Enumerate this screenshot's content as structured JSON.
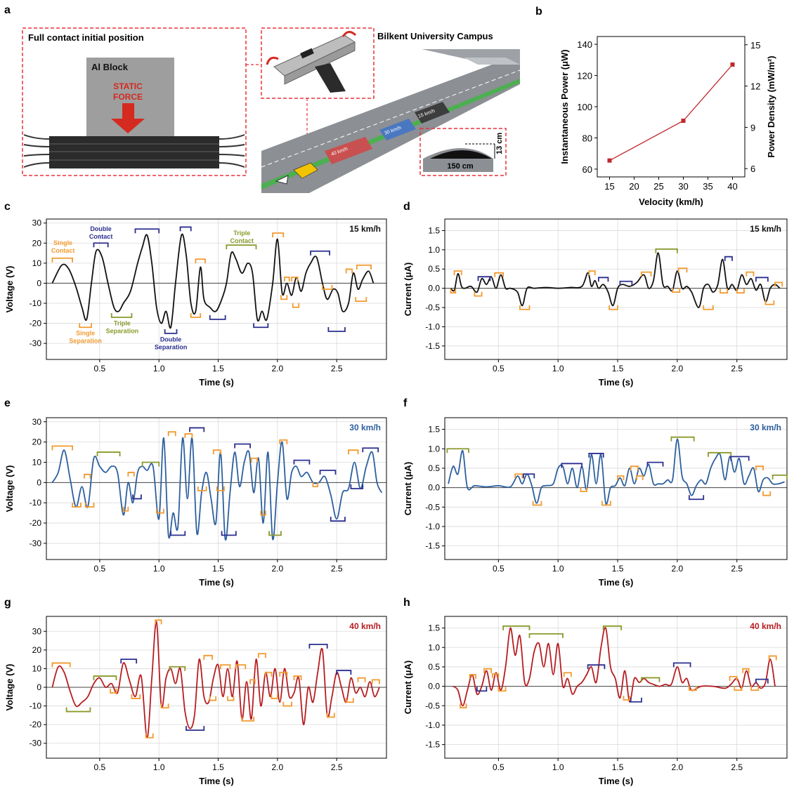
{
  "panel_letters": {
    "a": "a",
    "b": "b",
    "c": "c",
    "d": "d",
    "e": "e",
    "f": "f",
    "g": "g",
    "h": "h"
  },
  "panel_a": {
    "title_left": "Full contact initial position",
    "block_label": "Al Block",
    "force_line1": "STATIC",
    "force_line2": "FORCE",
    "campus_label": "Bilkent University Campus",
    "bump_height": "13 cm",
    "bump_width": "150 cm",
    "zone_labels": [
      "40 km/h",
      "30 km/h",
      "15 km/h"
    ],
    "colors": {
      "dashed_frame": "#e8323c",
      "block": "#9e9e9e",
      "stack": "#333333",
      "road": "#8c8f94",
      "green_strip": "#4caf50",
      "arrow": "#d42a20"
    }
  },
  "chart_data": [
    {
      "id": "b",
      "type": "line",
      "x": [
        15,
        30,
        40
      ],
      "y": [
        65.5,
        91,
        127
      ],
      "xlabel": "Velocity (km/h)",
      "ylabel": "Instantaneous Power (μW)",
      "y2label": "Power Density (mW/m²)",
      "xlim": [
        12.5,
        42.5
      ],
      "ylim": [
        55,
        145
      ],
      "y2lim": [
        5.4,
        15.6
      ],
      "xticks": [
        15,
        20,
        25,
        30,
        35,
        40
      ],
      "yticks": [
        60,
        80,
        100,
        120,
        140
      ],
      "y2ticks": [
        6,
        9,
        12,
        15
      ],
      "color": "#c0282d"
    },
    {
      "id": "c",
      "type": "line",
      "xlabel": "Time (s)",
      "ylabel": "Voltage (V)",
      "speed_label": "15 km/h",
      "xlim": [
        0.05,
        2.92
      ],
      "ylim": [
        -38,
        32
      ],
      "xticks": [
        0.5,
        1.0,
        1.5,
        2.0,
        2.5
      ],
      "yticks": [
        -30,
        -20,
        -10,
        0,
        10,
        20,
        30
      ],
      "color": "#111111",
      "x": [
        0.1,
        0.18,
        0.24,
        0.3,
        0.35,
        0.39,
        0.43,
        0.47,
        0.52,
        0.57,
        0.62,
        0.66,
        0.7,
        0.76,
        0.82,
        0.86,
        0.9,
        0.94,
        0.98,
        1.02,
        1.06,
        1.1,
        1.14,
        1.19,
        1.23,
        1.27,
        1.31,
        1.35,
        1.38,
        1.43,
        1.48,
        1.53,
        1.57,
        1.61,
        1.65,
        1.7,
        1.75,
        1.79,
        1.83,
        1.87,
        1.91,
        1.96,
        2.0,
        2.04,
        2.08,
        2.12,
        2.16,
        2.2,
        2.24,
        2.28,
        2.33,
        2.38,
        2.42,
        2.47,
        2.51,
        2.55,
        2.6,
        2.64,
        2.68,
        2.72,
        2.77,
        2.81
      ],
      "y": [
        0,
        9,
        7,
        -2,
        -12,
        -18,
        0,
        16,
        13,
        0,
        -12,
        -14,
        -10,
        -4,
        10,
        18,
        24,
        10,
        -12,
        -20,
        -14,
        -22,
        0,
        24,
        14,
        -10,
        -14,
        8,
        -8,
        -12,
        -14,
        -8,
        0,
        15,
        12,
        5,
        10,
        5,
        -18,
        -14,
        -18,
        0,
        22,
        -5,
        0,
        -6,
        3,
        -4,
        5,
        10,
        13,
        0,
        -8,
        -3,
        -5,
        -14,
        -10,
        5,
        -3,
        2,
        6,
        0
      ]
    },
    {
      "id": "d",
      "type": "line",
      "xlabel": "Time (s)",
      "ylabel": "Current (μA)",
      "speed_label": "15 km/h",
      "xlim": [
        0.05,
        2.92
      ],
      "ylim": [
        -1.85,
        1.8
      ],
      "xticks": [
        0.5,
        1.0,
        1.5,
        2.0,
        2.5
      ],
      "yticks": [
        -1.5,
        -1.0,
        -0.5,
        0.0,
        0.5,
        1.0,
        1.5
      ],
      "color": "#111111",
      "x": [
        0.1,
        0.13,
        0.16,
        0.19,
        0.22,
        0.27,
        0.32,
        0.36,
        0.4,
        0.44,
        0.48,
        0.52,
        0.56,
        0.6,
        0.66,
        0.7,
        0.74,
        0.8,
        0.9,
        1.0,
        1.1,
        1.2,
        1.25,
        1.28,
        1.31,
        1.34,
        1.38,
        1.42,
        1.46,
        1.5,
        1.54,
        1.6,
        1.66,
        1.72,
        1.76,
        1.8,
        1.84,
        1.88,
        1.92,
        1.96,
        2.0,
        2.04,
        2.08,
        2.12,
        2.18,
        2.22,
        2.26,
        2.3,
        2.34,
        2.38,
        2.42,
        2.46,
        2.5,
        2.54,
        2.58,
        2.62,
        2.66,
        2.7,
        2.74,
        2.78,
        2.82,
        2.86
      ],
      "y": [
        0,
        -0.05,
        0.38,
        0.05,
        0,
        0.05,
        -0.1,
        0.25,
        0.1,
        0.3,
        0,
        0.35,
        0,
        0,
        -0.1,
        -0.45,
        0,
        0,
        0.02,
        0,
        0.02,
        0.05,
        0.4,
        0.05,
        0.2,
        0,
        0.1,
        -0.1,
        -0.45,
        0,
        0.1,
        0.05,
        0.15,
        0.35,
        0,
        0.2,
        0.92,
        0.1,
        0.05,
        -0.05,
        0.45,
        0,
        0.05,
        -0.1,
        -0.5,
        0,
        0.1,
        -0.1,
        0.1,
        0.75,
        0,
        0.1,
        -0.05,
        0.35,
        0.1,
        0.25,
        -0.05,
        0.1,
        -0.35,
        0,
        0.1,
        0
      ]
    },
    {
      "id": "e",
      "type": "line",
      "xlabel": "Time (s)",
      "ylabel": "Voltage (V)",
      "speed_label": "30 km/h",
      "xlim": [
        0.05,
        2.92
      ],
      "ylim": [
        -38,
        32
      ],
      "xticks": [
        0.5,
        1.0,
        1.5,
        2.0,
        2.5
      ],
      "yticks": [
        -30,
        -20,
        -10,
        0,
        10,
        20,
        30
      ],
      "color": "#2c5f9e",
      "x": [
        0.1,
        0.15,
        0.2,
        0.25,
        0.3,
        0.35,
        0.4,
        0.45,
        0.5,
        0.55,
        0.6,
        0.65,
        0.7,
        0.74,
        0.78,
        0.82,
        0.86,
        0.9,
        0.95,
        1.0,
        1.04,
        1.08,
        1.12,
        1.16,
        1.2,
        1.24,
        1.28,
        1.32,
        1.36,
        1.4,
        1.44,
        1.48,
        1.52,
        1.56,
        1.6,
        1.64,
        1.68,
        1.72,
        1.76,
        1.8,
        1.84,
        1.88,
        1.92,
        1.96,
        2.0,
        2.04,
        2.08,
        2.12,
        2.16,
        2.2,
        2.25,
        2.3,
        2.35,
        2.4,
        2.45,
        2.5,
        2.55,
        2.6,
        2.65,
        2.7,
        2.75,
        2.8,
        2.84,
        2.88
      ],
      "y": [
        0,
        5,
        16,
        2,
        -12,
        -2,
        -12,
        12,
        8,
        5,
        8,
        5,
        -16,
        0,
        -10,
        5,
        8,
        6,
        8,
        -18,
        22,
        -26,
        -15,
        -22,
        22,
        -8,
        22,
        -25,
        -5,
        5,
        -8,
        -20,
        15,
        -28,
        -5,
        15,
        -2,
        10,
        15,
        -5,
        12,
        -20,
        15,
        -28,
        0,
        20,
        -8,
        5,
        8,
        3,
        5,
        0,
        0,
        3,
        -6,
        -18,
        -5,
        -3,
        10,
        -3,
        8,
        15,
        0,
        -5
      ]
    },
    {
      "id": "f",
      "type": "line",
      "xlabel": "Time (s)",
      "ylabel": "Current (μA)",
      "speed_label": "30 km/h",
      "xlim": [
        0.05,
        2.92
      ],
      "ylim": [
        -1.85,
        1.8
      ],
      "xticks": [
        0.5,
        1.0,
        1.5,
        2.0,
        2.5
      ],
      "yticks": [
        -1.5,
        -1.0,
        -0.5,
        0.0,
        0.5,
        1.0,
        1.5
      ],
      "color": "#2c5f9e",
      "x": [
        0.08,
        0.12,
        0.16,
        0.2,
        0.24,
        0.3,
        0.4,
        0.5,
        0.6,
        0.66,
        0.7,
        0.74,
        0.78,
        0.82,
        0.86,
        0.9,
        0.96,
        1.0,
        1.04,
        1.08,
        1.12,
        1.16,
        1.2,
        1.24,
        1.28,
        1.32,
        1.36,
        1.4,
        1.44,
        1.48,
        1.52,
        1.56,
        1.6,
        1.64,
        1.68,
        1.72,
        1.76,
        1.8,
        1.84,
        1.88,
        1.92,
        1.96,
        2.0,
        2.04,
        2.08,
        2.12,
        2.16,
        2.2,
        2.24,
        2.28,
        2.32,
        2.36,
        2.4,
        2.44,
        2.48,
        2.52,
        2.56,
        2.6,
        2.64,
        2.68,
        2.72,
        2.76,
        2.8,
        2.85,
        2.9
      ],
      "y": [
        0.1,
        0.55,
        0.35,
        0.95,
        0,
        0.05,
        0.02,
        0.05,
        0.02,
        0.3,
        0.1,
        0.35,
        0.05,
        -0.4,
        0,
        0.05,
        0.1,
        0.5,
        0.55,
        0.1,
        0.5,
        0,
        0.55,
        -0.05,
        0.85,
        0.1,
        0.85,
        -0.4,
        0,
        0.05,
        0.25,
        0.05,
        0.5,
        0.1,
        0.5,
        0.3,
        0.6,
        0.1,
        0.1,
        0.1,
        0.2,
        0.2,
        1.25,
        0.3,
        0.1,
        -0.2,
        0.05,
        0.2,
        0.1,
        0.5,
        0.75,
        0.85,
        0.2,
        0.8,
        0.4,
        0.75,
        0.1,
        0.3,
        0.5,
        -0.1,
        0.2,
        0.25,
        0.1,
        0.1,
        0.15
      ]
    },
    {
      "id": "g",
      "type": "line",
      "xlabel": "Time (s)",
      "ylabel": "Voltage (V)",
      "speed_label": "40 km/h",
      "xlim": [
        0.05,
        2.92
      ],
      "ylim": [
        -38,
        38
      ],
      "xticks": [
        0.5,
        1.0,
        1.5,
        2.0,
        2.5
      ],
      "yticks": [
        -30,
        -20,
        -10,
        0,
        10,
        20,
        30
      ],
      "color": "#b71c20",
      "x": [
        0.1,
        0.15,
        0.2,
        0.25,
        0.3,
        0.35,
        0.4,
        0.45,
        0.5,
        0.55,
        0.6,
        0.65,
        0.7,
        0.75,
        0.8,
        0.85,
        0.9,
        0.94,
        0.98,
        1.02,
        1.06,
        1.1,
        1.14,
        1.18,
        1.22,
        1.26,
        1.3,
        1.34,
        1.38,
        1.42,
        1.46,
        1.5,
        1.54,
        1.58,
        1.62,
        1.66,
        1.7,
        1.74,
        1.78,
        1.82,
        1.86,
        1.9,
        1.94,
        1.98,
        2.02,
        2.06,
        2.1,
        2.14,
        2.18,
        2.22,
        2.26,
        2.3,
        2.34,
        2.38,
        2.42,
        2.46,
        2.5,
        2.54,
        2.58,
        2.62,
        2.66,
        2.7,
        2.74,
        2.78,
        2.82,
        2.86
      ],
      "y": [
        0,
        11,
        8,
        -2,
        -10,
        -8,
        -5,
        2,
        5,
        0,
        2,
        -3,
        13,
        4,
        -5,
        6,
        -27,
        5,
        35,
        -10,
        5,
        10,
        2,
        10,
        -13,
        -22,
        -15,
        15,
        -5,
        -8,
        5,
        12,
        -5,
        10,
        -5,
        14,
        -17,
        3,
        -17,
        15,
        -10,
        8,
        -5,
        10,
        -8,
        10,
        -5,
        -3,
        5,
        -20,
        0,
        -8,
        8,
        20,
        -15,
        -5,
        8,
        0,
        -8,
        5,
        -3,
        0,
        -5,
        3,
        -5,
        0
      ]
    },
    {
      "id": "h",
      "type": "line",
      "xlabel": "Time (s)",
      "ylabel": "Current (μA)",
      "speed_label": "40 km/h",
      "xlim": [
        0.05,
        2.92
      ],
      "ylim": [
        -1.85,
        1.8
      ],
      "xticks": [
        0.5,
        1.0,
        1.5,
        2.0,
        2.5
      ],
      "yticks": [
        -1.5,
        -1.0,
        -0.5,
        0.0,
        0.5,
        1.0,
        1.5
      ],
      "color": "#b71c20",
      "x": [
        0.12,
        0.16,
        0.2,
        0.24,
        0.28,
        0.32,
        0.36,
        0.4,
        0.44,
        0.48,
        0.52,
        0.56,
        0.6,
        0.64,
        0.68,
        0.72,
        0.76,
        0.8,
        0.84,
        0.88,
        0.92,
        0.96,
        1.0,
        1.04,
        1.08,
        1.12,
        1.16,
        1.2,
        1.24,
        1.28,
        1.32,
        1.36,
        1.4,
        1.44,
        1.48,
        1.52,
        1.56,
        1.6,
        1.64,
        1.68,
        1.72,
        1.76,
        1.8,
        1.85,
        1.9,
        1.95,
        2.0,
        2.04,
        2.08,
        2.12,
        2.2,
        2.3,
        2.4,
        2.45,
        2.5,
        2.54,
        2.58,
        2.62,
        2.66,
        2.7,
        2.74,
        2.78,
        2.82
      ],
      "y": [
        0,
        -0.1,
        -0.5,
        -0.1,
        0.3,
        -0.2,
        0,
        0.4,
        -0.1,
        0.35,
        -0.1,
        0.5,
        1.5,
        0.8,
        1.3,
        0.1,
        0.2,
        0.9,
        1.1,
        0.5,
        1.1,
        0.3,
        1.1,
        0,
        0.2,
        -0.2,
        0,
        0.1,
        0.3,
        0.5,
        0.1,
        1.0,
        1.5,
        0.5,
        0.2,
        -0.3,
        0.4,
        -0.4,
        0.2,
        0.1,
        0.2,
        0.1,
        0.05,
        0,
        0.05,
        0.05,
        0.5,
        0.1,
        0.2,
        -0.1,
        0,
        0,
        -0.05,
        0.05,
        0.2,
        -0.05,
        0.4,
        0,
        0.1,
        -0.05,
        0.1,
        0.7,
        0
      ]
    }
  ],
  "annotations_c": {
    "single_contact": [
      "Single",
      "Contact"
    ],
    "single_separation": [
      "Single",
      "Separation"
    ],
    "double_contact": [
      "Double",
      "Contact"
    ],
    "double_separation": [
      "Double",
      "Separation"
    ],
    "triple_contact": [
      "Triple",
      "Contact"
    ],
    "triple_separation": [
      "Triple",
      "Separation"
    ]
  },
  "bracket_colors": {
    "single": "#f29a2e",
    "double": "#2b2f8f",
    "triple": "#8a9a2a"
  }
}
